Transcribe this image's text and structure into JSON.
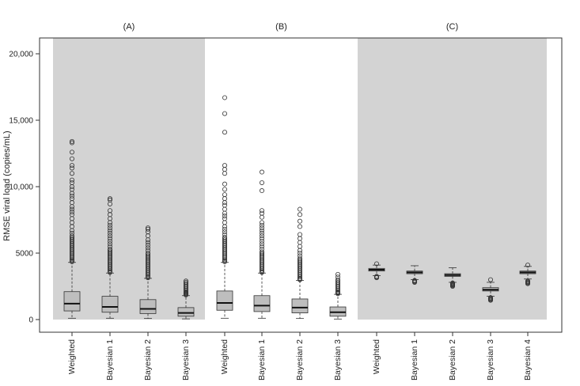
{
  "chart_data": {
    "type": "boxplot",
    "ylabel": "RMSE viral load (copies/mL)",
    "ylim": [
      0,
      20000
    ],
    "y_ticks": [
      {
        "value": 0,
        "label": "0"
      },
      {
        "value": 5000,
        "label": "5000"
      },
      {
        "value": 10000,
        "label": "10,000"
      },
      {
        "value": 15000,
        "label": "15,000"
      },
      {
        "value": 20000,
        "label": "20,000"
      }
    ],
    "colors": {
      "panel_shade": "#d3d3d3",
      "box_fill": "#bebebe",
      "axis": "#333333",
      "outlier": "#333333"
    },
    "panels": [
      {
        "title": "(A)",
        "shaded": true,
        "boxes": [
          {
            "label": "Weighted",
            "whisker_low": 100,
            "q1": 650,
            "median": 1200,
            "q3": 2100,
            "whisker_high": 4300,
            "outliers": [
              4350,
              4420,
              4500,
              4600,
              4700,
              4800,
              4900,
              5000,
              5100,
              5200,
              5300,
              5400,
              5500,
              5600,
              5700,
              5800,
              5900,
              6000,
              6100,
              6200,
              6300,
              6500,
              6700,
              7000,
              7300,
              7600,
              7900,
              8100,
              8300,
              8500,
              8800,
              9100,
              9300,
              9500,
              9800,
              10000,
              10300,
              10500,
              11000,
              11400,
              11600,
              12100,
              12600,
              13300,
              13400
            ]
          },
          {
            "label": "Bayesian 1",
            "whisker_low": 100,
            "q1": 550,
            "median": 950,
            "q3": 1750,
            "whisker_high": 3500,
            "outliers": [
              3550,
              3600,
              3700,
              3800,
              3900,
              4000,
              4100,
              4200,
              4300,
              4400,
              4500,
              4600,
              4700,
              4800,
              4900,
              5000,
              5100,
              5200,
              5300,
              5500,
              5700,
              5900,
              6100,
              6300,
              6500,
              6700,
              6900,
              7100,
              7300,
              7600,
              7900,
              8200,
              8700,
              9000,
              9100
            ]
          },
          {
            "label": "Bayesian 2",
            "whisker_low": 80,
            "q1": 450,
            "median": 800,
            "q3": 1500,
            "whisker_high": 3100,
            "outliers": [
              3150,
              3200,
              3300,
              3400,
              3500,
              3600,
              3700,
              3800,
              3900,
              4000,
              4100,
              4200,
              4300,
              4400,
              4500,
              4600,
              4700,
              4800,
              4900,
              5000,
              5200,
              5400,
              5600,
              5800,
              6000,
              6300,
              6600,
              6800,
              6900
            ]
          },
          {
            "label": "Bayesian 3",
            "whisker_low": 50,
            "q1": 250,
            "median": 500,
            "q3": 900,
            "whisker_high": 1800,
            "outliers": [
              1850,
              1900,
              1950,
              2000,
              2050,
              2100,
              2200,
              2300,
              2400,
              2500,
              2600,
              2700,
              2800,
              2900
            ]
          }
        ]
      },
      {
        "title": "(B)",
        "shaded": false,
        "boxes": [
          {
            "label": "Weighted",
            "whisker_low": 100,
            "q1": 700,
            "median": 1250,
            "q3": 2150,
            "whisker_high": 4300,
            "outliers": [
              4350,
              4420,
              4500,
              4600,
              4700,
              4800,
              4900,
              5000,
              5100,
              5200,
              5300,
              5400,
              5500,
              5600,
              5700,
              5800,
              5900,
              6000,
              6100,
              6200,
              6400,
              6600,
              6800,
              7000,
              7300,
              7600,
              7800,
              8000,
              8300,
              8600,
              8800,
              9100,
              9400,
              9800,
              10200,
              11000,
              11300,
              11600,
              14100,
              15500,
              16700
            ]
          },
          {
            "label": "Bayesian 1",
            "whisker_low": 100,
            "q1": 600,
            "median": 1050,
            "q3": 1800,
            "whisker_high": 3500,
            "outliers": [
              3550,
              3600,
              3700,
              3800,
              3900,
              4000,
              4100,
              4200,
              4300,
              4400,
              4500,
              4600,
              4700,
              4800,
              4900,
              5000,
              5100,
              5300,
              5500,
              5700,
              5900,
              6100,
              6300,
              6500,
              6700,
              6900,
              7100,
              7300,
              7700,
              8000,
              8200,
              9700,
              10300,
              11100
            ]
          },
          {
            "label": "Bayesian 2",
            "whisker_low": 80,
            "q1": 500,
            "median": 900,
            "q3": 1550,
            "whisker_high": 2950,
            "outliers": [
              3000,
              3050,
              3100,
              3200,
              3300,
              3400,
              3500,
              3600,
              3700,
              3800,
              3900,
              4000,
              4100,
              4200,
              4300,
              4400,
              4500,
              4600,
              4800,
              5000,
              5200,
              5500,
              5800,
              6100,
              6400,
              7000,
              7400,
              7900,
              8300
            ]
          },
          {
            "label": "Bayesian 3",
            "whisker_low": 40,
            "q1": 250,
            "median": 550,
            "q3": 950,
            "whisker_high": 1900,
            "outliers": [
              1950,
              2000,
              2050,
              2100,
              2200,
              2300,
              2400,
              2500,
              2600,
              2700,
              2800,
              2900,
              3000,
              3200,
              3400
            ]
          }
        ]
      },
      {
        "title": "(C)",
        "shaded": true,
        "boxes": [
          {
            "label": "Weighted",
            "whisker_low": 3300,
            "q1": 3650,
            "median": 3750,
            "q3": 3850,
            "whisker_high": 4100,
            "outliers": [
              3150,
              3200,
              3250,
              4200
            ]
          },
          {
            "label": "Bayesian 1",
            "whisker_low": 3000,
            "q1": 3450,
            "median": 3550,
            "q3": 3650,
            "whisker_high": 4050,
            "outliers": [
              2800,
              2850,
              2900,
              2950
            ]
          },
          {
            "label": "Bayesian 2",
            "whisker_low": 2800,
            "q1": 3250,
            "median": 3350,
            "q3": 3450,
            "whisker_high": 3900,
            "outliers": [
              2500,
              2550,
              2600,
              2650,
              2700,
              2750
            ]
          },
          {
            "label": "Bayesian 3",
            "whisker_low": 1750,
            "q1": 2150,
            "median": 2250,
            "q3": 2400,
            "whisker_high": 2800,
            "outliers": [
              1450,
              1500,
              1550,
              1600,
              1650,
              3000
            ]
          },
          {
            "label": "Bayesian 4",
            "whisker_low": 3050,
            "q1": 3450,
            "median": 3550,
            "q3": 3650,
            "whisker_high": 4000,
            "outliers": [
              2700,
              2750,
              2800,
              2850,
              2900,
              4100
            ]
          }
        ]
      }
    ]
  }
}
